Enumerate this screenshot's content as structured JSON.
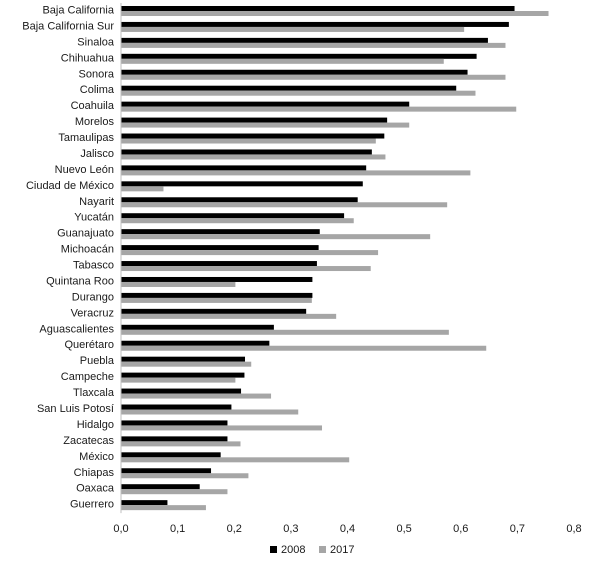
{
  "chart_data": {
    "type": "bar",
    "orientation": "horizontal",
    "title": "",
    "xlabel": "",
    "ylabel": "",
    "xlim": [
      0,
      0.8
    ],
    "x_ticks": [
      "0,0",
      "0,1",
      "0,2",
      "0,3",
      "0,4",
      "0,5",
      "0,6",
      "0,7",
      "0,8"
    ],
    "grid": false,
    "legend_position": "bottom-center",
    "categories": [
      "Baja California",
      "Baja California Sur",
      "Sinaloa",
      "Chihuahua",
      "Sonora",
      "Colima",
      "Coahuila",
      "Morelos",
      "Tamaulipas",
      "Jalisco",
      "Nuevo León",
      "Ciudad de México",
      "Nayarit",
      "Yucatán",
      "Guanajuato",
      "Michoacán",
      "Tabasco",
      "Quintana Roo",
      "Durango",
      "Veracruz",
      "Aguascalientes",
      "Querétaro",
      "Puebla",
      "Campeche",
      "Tlaxcala",
      "San Luis Potosí",
      "Hidalgo",
      "Zacatecas",
      "México",
      "Chiapas",
      "Oaxaca",
      "Guerrero"
    ],
    "series": [
      {
        "name": "2008",
        "color": "#000000",
        "values": [
          0.695,
          0.685,
          0.648,
          0.628,
          0.612,
          0.592,
          0.509,
          0.47,
          0.465,
          0.443,
          0.433,
          0.427,
          0.418,
          0.394,
          0.351,
          0.349,
          0.346,
          0.338,
          0.338,
          0.327,
          0.27,
          0.262,
          0.219,
          0.218,
          0.212,
          0.195,
          0.188,
          0.188,
          0.176,
          0.159,
          0.139,
          0.082
        ]
      },
      {
        "name": "2017",
        "color": "#a6a6a6",
        "values": [
          0.755,
          0.606,
          0.679,
          0.57,
          0.679,
          0.626,
          0.698,
          0.509,
          0.45,
          0.467,
          0.617,
          0.075,
          0.576,
          0.411,
          0.546,
          0.454,
          0.441,
          0.202,
          0.337,
          0.38,
          0.579,
          0.645,
          0.23,
          0.202,
          0.265,
          0.313,
          0.355,
          0.211,
          0.403,
          0.225,
          0.188,
          0.15
        ]
      }
    ]
  }
}
